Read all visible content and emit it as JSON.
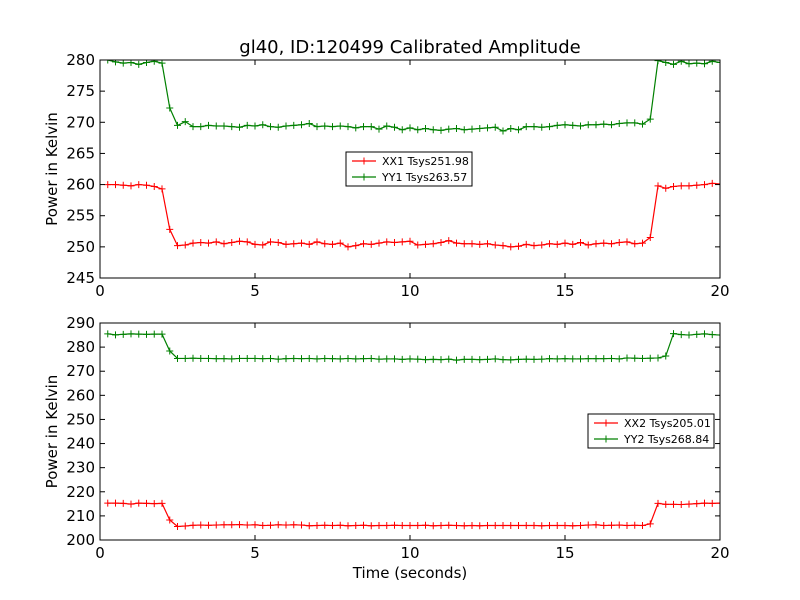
{
  "chart_data": {
    "type": "line",
    "title": "gl40, ID:120499 Calibrated Amplitude",
    "xlabel": "Time (seconds)",
    "panels": [
      {
        "ylabel": "Power in Kelvin",
        "xlim": [
          0,
          20
        ],
        "ylim": [
          245,
          280
        ],
        "xticks": [
          0,
          5,
          10,
          15,
          20
        ],
        "yticks": [
          245,
          250,
          255,
          260,
          265,
          270,
          275,
          280
        ],
        "legend_position": "center",
        "series": [
          {
            "name": "XX1 Tsys251.98",
            "color": "#ff0000",
            "x": [
              0.25,
              0.5,
              0.75,
              1.0,
              1.25,
              1.5,
              1.75,
              2.0,
              2.25,
              2.5,
              2.75,
              3.0,
              3.25,
              3.5,
              3.75,
              4.0,
              4.25,
              4.5,
              4.75,
              5.0,
              5.25,
              5.5,
              5.75,
              6.0,
              6.25,
              6.5,
              6.75,
              7.0,
              7.25,
              7.5,
              7.75,
              8.0,
              8.25,
              8.5,
              8.75,
              9.0,
              9.25,
              9.5,
              9.75,
              10.0,
              10.25,
              10.5,
              10.75,
              11.0,
              11.25,
              11.5,
              11.75,
              12.0,
              12.25,
              12.5,
              12.75,
              13.0,
              13.25,
              13.5,
              13.75,
              14.0,
              14.25,
              14.5,
              14.75,
              15.0,
              15.25,
              15.5,
              15.75,
              16.0,
              16.25,
              16.5,
              16.75,
              17.0,
              17.25,
              17.5,
              17.75,
              18.0,
              18.25,
              18.5,
              18.75,
              19.0,
              19.25,
              19.5,
              19.75,
              20.0
            ],
            "y": [
              260.0,
              260.0,
              259.9,
              259.8,
              260.0,
              259.9,
              259.7,
              259.3,
              252.8,
              250.2,
              250.3,
              250.6,
              250.7,
              250.6,
              250.8,
              250.5,
              250.7,
              250.9,
              250.8,
              250.4,
              250.3,
              250.8,
              250.7,
              250.4,
              250.5,
              250.6,
              250.4,
              250.8,
              250.5,
              250.4,
              250.6,
              250.0,
              250.2,
              250.5,
              250.4,
              250.6,
              250.8,
              250.7,
              250.8,
              250.9,
              250.3,
              250.4,
              250.5,
              250.7,
              251.0,
              250.6,
              250.5,
              250.5,
              250.4,
              250.5,
              250.3,
              250.2,
              250.0,
              250.1,
              250.4,
              250.2,
              250.3,
              250.5,
              250.4,
              250.6,
              250.4,
              250.7,
              250.3,
              250.5,
              250.6,
              250.5,
              250.7,
              250.8,
              250.5,
              250.6,
              251.5,
              259.8,
              259.4,
              259.7,
              259.8,
              259.8,
              259.9,
              260.0,
              260.2,
              260.1
            ]
          },
          {
            "name": "YY1 Tsys263.57",
            "color": "#008000",
            "x": [
              0.25,
              0.5,
              0.75,
              1.0,
              1.25,
              1.5,
              1.75,
              2.0,
              2.25,
              2.5,
              2.75,
              3.0,
              3.25,
              3.5,
              3.75,
              4.0,
              4.25,
              4.5,
              4.75,
              5.0,
              5.25,
              5.5,
              5.75,
              6.0,
              6.25,
              6.5,
              6.75,
              7.0,
              7.25,
              7.5,
              7.75,
              8.0,
              8.25,
              8.5,
              8.75,
              9.0,
              9.25,
              9.5,
              9.75,
              10.0,
              10.25,
              10.5,
              10.75,
              11.0,
              11.25,
              11.5,
              11.75,
              12.0,
              12.25,
              12.5,
              12.75,
              13.0,
              13.25,
              13.5,
              13.75,
              14.0,
              14.25,
              14.5,
              14.75,
              15.0,
              15.25,
              15.5,
              15.75,
              16.0,
              16.25,
              16.5,
              16.75,
              17.0,
              17.25,
              17.5,
              17.75,
              18.0,
              18.25,
              18.5,
              18.75,
              19.0,
              19.25,
              19.5,
              19.75,
              20.0
            ],
            "y": [
              280.0,
              279.7,
              279.5,
              279.6,
              279.3,
              279.6,
              279.8,
              279.5,
              272.3,
              269.5,
              270.1,
              269.3,
              269.3,
              269.5,
              269.4,
              269.4,
              269.3,
              269.2,
              269.5,
              269.4,
              269.6,
              269.3,
              269.2,
              269.4,
              269.5,
              269.6,
              269.8,
              269.3,
              269.4,
              269.3,
              269.4,
              269.3,
              269.1,
              269.3,
              269.3,
              268.9,
              269.4,
              269.2,
              268.8,
              269.1,
              268.8,
              269.0,
              268.8,
              268.7,
              268.9,
              269.0,
              268.8,
              268.9,
              269.0,
              269.1,
              269.2,
              268.6,
              269.0,
              268.8,
              269.3,
              269.3,
              269.2,
              269.3,
              269.5,
              269.6,
              269.5,
              269.4,
              269.6,
              269.6,
              269.7,
              269.6,
              269.8,
              269.9,
              269.9,
              269.7,
              270.5,
              279.9,
              279.6,
              279.3,
              279.8,
              279.4,
              279.5,
              279.4,
              279.8,
              279.6
            ]
          }
        ]
      },
      {
        "ylabel": "Power in Kelvin",
        "xlim": [
          0,
          20
        ],
        "ylim": [
          200,
          290
        ],
        "xticks": [
          0,
          5,
          10,
          15,
          20
        ],
        "yticks": [
          200,
          210,
          220,
          230,
          240,
          250,
          260,
          270,
          280,
          290
        ],
        "legend_position": "center-right",
        "series": [
          {
            "name": "XX2 Tsys205.01",
            "color": "#ff0000",
            "x": [
              0.25,
              0.5,
              0.75,
              1.0,
              1.25,
              1.5,
              1.75,
              2.0,
              2.25,
              2.5,
              2.75,
              3.0,
              3.25,
              3.5,
              3.75,
              4.0,
              4.25,
              4.5,
              4.75,
              5.0,
              5.25,
              5.5,
              5.75,
              6.0,
              6.25,
              6.5,
              6.75,
              7.0,
              7.25,
              7.5,
              7.75,
              8.0,
              8.25,
              8.5,
              8.75,
              9.0,
              9.25,
              9.5,
              9.75,
              10.0,
              10.25,
              10.5,
              10.75,
              11.0,
              11.25,
              11.5,
              11.75,
              12.0,
              12.25,
              12.5,
              12.75,
              13.0,
              13.25,
              13.5,
              13.75,
              14.0,
              14.25,
              14.5,
              14.75,
              15.0,
              15.25,
              15.5,
              15.75,
              16.0,
              16.25,
              16.5,
              16.75,
              17.0,
              17.25,
              17.5,
              17.75,
              18.0,
              18.25,
              18.5,
              18.75,
              19.0,
              19.25,
              19.5,
              19.75,
              20.0
            ],
            "y": [
              215.3,
              215.3,
              215.2,
              214.9,
              215.3,
              215.2,
              215.1,
              215.2,
              208.3,
              205.6,
              205.8,
              206.1,
              206.2,
              206.1,
              206.2,
              206.3,
              206.3,
              206.4,
              206.2,
              206.3,
              206.0,
              206.1,
              206.3,
              206.2,
              206.3,
              206.2,
              205.9,
              206.0,
              206.1,
              206.0,
              206.1,
              205.9,
              206.0,
              206.1,
              205.9,
              206.0,
              206.0,
              206.1,
              206.0,
              206.0,
              206.0,
              206.1,
              205.9,
              206.0,
              206.1,
              206.0,
              205.9,
              206.0,
              205.9,
              206.0,
              206.0,
              206.0,
              206.0,
              206.0,
              206.0,
              206.0,
              205.9,
              206.0,
              206.0,
              206.0,
              205.9,
              206.0,
              206.2,
              206.3,
              206.0,
              206.1,
              206.2,
              206.0,
              206.1,
              206.0,
              206.7,
              215.2,
              214.8,
              214.8,
              214.7,
              214.9,
              215.1,
              215.3,
              215.2,
              215.3
            ]
          },
          {
            "name": "YY2 Tsys268.84",
            "color": "#008000",
            "x": [
              0.25,
              0.5,
              0.75,
              1.0,
              1.25,
              1.5,
              1.75,
              2.0,
              2.25,
              2.5,
              2.75,
              3.0,
              3.25,
              3.5,
              3.75,
              4.0,
              4.25,
              4.5,
              4.75,
              5.0,
              5.25,
              5.5,
              5.75,
              6.0,
              6.25,
              6.5,
              6.75,
              7.0,
              7.25,
              7.5,
              7.75,
              8.0,
              8.25,
              8.5,
              8.75,
              9.0,
              9.25,
              9.5,
              9.75,
              10.0,
              10.25,
              10.5,
              10.75,
              11.0,
              11.25,
              11.5,
              11.75,
              12.0,
              12.25,
              12.5,
              12.75,
              13.0,
              13.25,
              13.5,
              13.75,
              14.0,
              14.25,
              14.5,
              14.75,
              15.0,
              15.25,
              15.5,
              15.75,
              16.0,
              16.25,
              16.5,
              16.75,
              17.0,
              17.25,
              17.5,
              17.75,
              18.0,
              18.25,
              18.5,
              18.75,
              19.0,
              19.25,
              19.5,
              19.75,
              20.0
            ],
            "y": [
              285.5,
              285.1,
              285.3,
              285.5,
              285.4,
              285.3,
              285.4,
              285.4,
              278.4,
              275.3,
              275.3,
              275.4,
              275.3,
              275.3,
              275.2,
              275.2,
              275.1,
              275.3,
              275.3,
              275.3,
              275.2,
              275.3,
              275.0,
              275.2,
              275.3,
              275.2,
              275.3,
              275.1,
              275.3,
              275.2,
              275.1,
              275.3,
              275.1,
              275.2,
              275.3,
              275.0,
              275.1,
              275.1,
              274.9,
              275.1,
              275.0,
              274.8,
              274.9,
              274.8,
              275.0,
              274.6,
              274.9,
              274.9,
              274.8,
              274.9,
              275.1,
              274.8,
              274.7,
              274.9,
              275.0,
              274.9,
              275.0,
              275.2,
              275.1,
              275.2,
              275.1,
              275.1,
              275.2,
              275.2,
              275.2,
              275.3,
              275.1,
              275.5,
              275.4,
              275.3,
              275.4,
              275.5,
              276.3,
              285.6,
              285.2,
              285.0,
              285.3,
              285.5,
              285.2,
              285.0
            ]
          }
        ]
      }
    ]
  }
}
